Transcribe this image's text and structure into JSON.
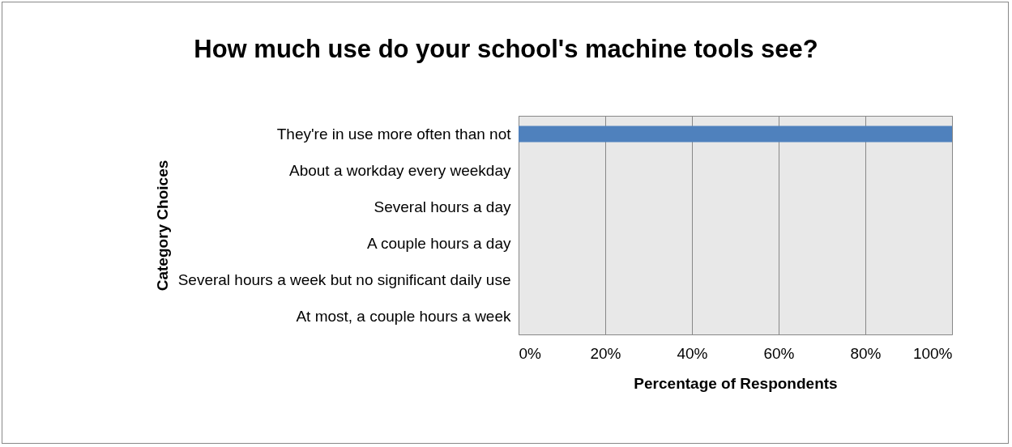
{
  "chart_data": {
    "type": "bar",
    "orientation": "horizontal",
    "title": "How much use do your school's machine tools see?",
    "xlabel": "Percentage of Respondents",
    "ylabel": "Category Choices",
    "categories": [
      "They're in use more often than not",
      "About a workday every weekday",
      "Several hours a day",
      "A couple hours a day",
      "Several hours a week but no significant daily use",
      "At most, a couple hours a week"
    ],
    "values": [
      100,
      0,
      0,
      0,
      0,
      0
    ],
    "color": "#4f81bd",
    "xlim": [
      0,
      100
    ],
    "xticks": [
      {
        "value": 0,
        "label": "0%"
      },
      {
        "value": 20,
        "label": "20%"
      },
      {
        "value": 40,
        "label": "40%"
      },
      {
        "value": 60,
        "label": "60%"
      },
      {
        "value": 80,
        "label": "80%"
      },
      {
        "value": 100,
        "label": "100%"
      }
    ],
    "grid": "x"
  }
}
